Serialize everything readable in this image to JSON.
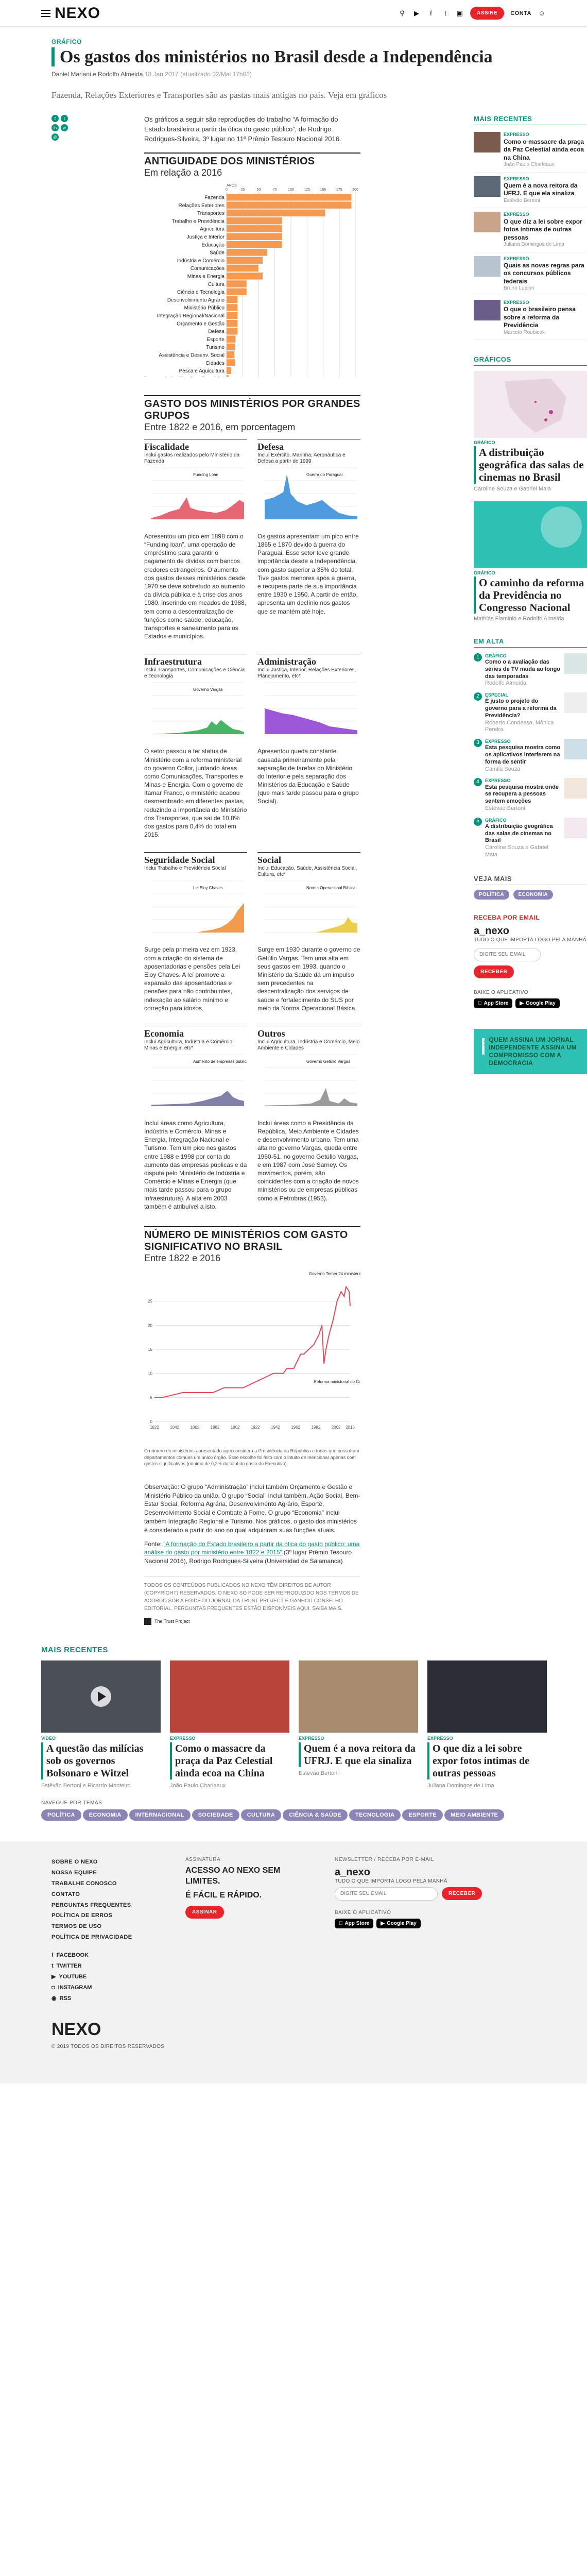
{
  "header": {
    "logo": "NEXO",
    "buttons": {
      "subscribe": "ASSINE",
      "account": "CONTA"
    }
  },
  "article": {
    "kicker": "GRÁFICO",
    "title": "Os gastos dos ministérios no Brasil desde a Independência",
    "author": "Daniel Mariani e Rodolfo Almeida",
    "date": "18 Jan 2017",
    "updated": "(atualizado 02/Mai 17h06)",
    "subtitle": "Fazenda, Relações Exteriores e Transportes são as pastas mais antigas no país. Veja em gráficos",
    "intro": "Os gráficos a seguir são reproduções do trabalho “A formação do Estado brasileiro a partir da ótica do gasto público”, de Rodrigo Rodrigues-Silveira, 3º lugar no 11º Prêmio Tesouro Nacional 2016.",
    "observacao": "Observação: O grupo “Administração” inclui também Orçamento e Gestão e Ministério Público da união. O grupo “Social” inclui também, Ação Social, Bem-Estar Social, Reforma Agrária, Desenvolvimento Agrário, Esporte, Desenvolvimento Social e Combate à Fome. O grupo “Economia” inclui também Integração Regional e Turismo. Nos gráficos, o gasto dos ministérios é considerado a partir do ano no qual adquiriram suas funções atuais.",
    "fonte_prefix": "Fonte: ",
    "fonte_link": "“A formação do Estado brasileiro a partir da ótica do gasto público: uma análise do gasto por ministério entre 1822 e 2015”",
    "fonte_suffix": " (3º lugar Prêmio Tesouro Nacional 2016), Rodrigo Rodrigues-Silveira (Universidad de Salamanca)",
    "rights": "TODOS OS CONTEÚDOS PUBLICADOS NO NEXO TÊM DIREITOS DE AUTOR (COPYRIGHT) RESERVADOS. O NEXO SÓ PODE SER REPRODUZIDO NOS TERMOS DE ACORDO SOB A ÉGIDE DO JORNAL DA TRUST PROJECT E GANHOU CONSELHO EDITORIAL. PERGUNTAS FREQUENTES ESTÃO DISPONÍVEIS AQUI. SAIBA MAIS.",
    "trust": "The Trust Project"
  },
  "chart_antiguidade": {
    "title": "ANTIGUIDADE DOS MINISTÉRIOS",
    "subtitle": "Em relação a 2016",
    "axis_top": "ANOS",
    "chart_data": {
      "type": "bar",
      "ylim": [
        0,
        200
      ],
      "ticks": [
        0,
        25,
        50,
        75,
        100,
        125,
        150,
        175,
        200
      ],
      "categories": [
        "Fazenda",
        "Relações Exteriores",
        "Transportes",
        "Trabalho e Previdência",
        "Agricultura",
        "Justiça e Interior",
        "Educação",
        "Saúde",
        "Indústria e Comércio",
        "Comunicações",
        "Minas e Energia",
        "Cultura",
        "Ciência e Tecnologia",
        "Desenvolvimento Agrário",
        "Ministério Público",
        "Integração Regional/Nacional",
        "Orçamento e Gestão",
        "Defesa",
        "Esporte",
        "Turismo",
        "Assistência e Desenv. Social",
        "Cidades",
        "Pesca e Aquicultura",
        "Transparência, Fiscalização e CGU"
      ],
      "values": [
        194,
        194,
        153,
        86,
        86,
        86,
        86,
        63,
        56,
        49,
        56,
        31,
        31,
        17,
        17,
        17,
        17,
        17,
        14,
        13,
        12,
        13,
        7,
        3
      ]
    }
  },
  "section_grupos": {
    "title": "GASTO DOS MINISTÉRIOS POR GRANDES GRUPOS",
    "subtitle": "Entre 1822 e 2016, em porcentagem"
  },
  "groups": [
    {
      "title": "Fiscalidade",
      "sub": "Inclui gastos realizados pelo Ministério da Fazenda",
      "note": "Funding Loan",
      "color": "#e24b5a",
      "text": "Apresentou um pico em 1898 com o “Funding loan”, uma operação de empréstimo para garantir o pagamento de dívidas com bancos credores estrangeiros. O aumento dos gastos desses ministérios desde 1970 se deve sobretudo ao aumento da dívida pública e à crise dos anos 1980, inserindo em meados de 1988, tem como a descentralização de funções como saúde, educação, transportes e saneamento para os Estados e municípios."
    },
    {
      "title": "Defesa",
      "sub": "Inclui Exército, Marinha, Aeronáutica e Defesa a partir de 1999",
      "note": "Guerra do Paraguai",
      "color": "#2f8ad8",
      "text": "Os gastos apresentam um pico entre 1865 e 1870 devido à guerra do Paraguai. Esse setor teve grande importância desde a Independência, com gasto superior a 35% do total. Tive gastos menores após a guerra, e recupera parte de sua importância entre 1930 e 1950. A partir de então, apresenta um declínio nos gastos que se mantém até hoje."
    },
    {
      "title": "Infraestrutura",
      "sub": "Inclui Transportes, Comunicações e Ciência e Tecnologia",
      "note": "Governo Vargas",
      "color": "#27a84a",
      "text": "O setor passou a ter status de Ministério com a reforma ministerial do governo Collor, juntando áreas como Comunicações, Transportes e Minas e Energia. Com o governo de Itamar Franco, o ministério acabou desmembrado em diferentes pastas, reduzindo a importância do Ministério dos Transportes, que sai de 10,8% dos gastos para 0,4% do total em 2015."
    },
    {
      "title": "Administração",
      "sub": "Inclui Justiça, Interior, Relações Exteriores, Planejamento, etc*",
      "note": "",
      "color": "#8a3ad0",
      "text": "Apresentou queda constante causada primeiramente pela separação de tarefas do Ministério do Interior e pela separação dos Ministérios da Educação e Saúde (que mais tarde passou para o grupo Social)."
    },
    {
      "title": "Seguridade Social",
      "sub": "Inclui Trabalho e Previdência Social",
      "note": "Lei Eloy Chaves",
      "color": "#f08a2c",
      "text": "Surge pela primeira vez em 1923, com a criação do sistema de aposentadorias e pensões pela Lei Eloy Chaves. A lei promove a expansão das aposentadorias e pensões para não contribuintes, indexação ao salário mínimo e correção para idosos."
    },
    {
      "title": "Social",
      "sub": "Inclui Educação, Saúde, Assistência Social, Cultura, etc*",
      "note": "Norma Operacional Básica",
      "color": "#e8c42a",
      "text": "Surge em 1930 durante o governo de Getúlio Vargas. Tem uma alta em seus gastos em 1993, quando o Ministério da Saúde dá um impulso sem precedentes na descentralização dos serviços de saúde e fortalecimento do SUS por meio da Norma Operacional Básica."
    },
    {
      "title": "Economia",
      "sub": "Inclui Agricultura, Indústria e Comércio, Minas e Energia, etc*",
      "note": "Aumento de empresas públicas",
      "color": "#6a6a9a",
      "text": "Inclui áreas como Agricultura, Indústria e Comércio, Minas e Energia, Integração Nacional e Turismo. Tem um pico nos gastos entre 1988 e 1998 por conta do aumento das empresas públicas e da disputa pelo Ministério de Indústria e Comércio e Minas e Energia (que mais tarde passou para o grupo Infraestrutura). A alta em 2003 também é atribuível a isto."
    },
    {
      "title": "Outros",
      "sub": "Inclui Agricultura, Indústria e Comércio, Meio Ambiente e Cidades",
      "note": "Governo Getúlio Vargas",
      "color": "#8a8a8a",
      "text": "Inclui áreas como a Presidência da República, Meio Ambiente e Cidades e desenvolvimento urbano. Tem uma alta no governo Vargas, queda entre 1950-51, no governo Getúlio Vargas, e em 1987 com José Sarney. Os movimentos, porém, são coincidentes com a criação de novos ministérios ou de empresas públicas como a Petrobras (1953)."
    }
  ],
  "chart_numero": {
    "title": "NÚMERO DE MINISTÉRIOS COM GASTO SIGNIFICATIVO NO BRASIL",
    "subtitle": "Entre 1822 e 2016",
    "note_top": "Governo Temer 24 ministérios",
    "note_mid": "Reforma ministerial de Collor (1990)",
    "footnote": "O número de ministérios apresentado aqui considera a Presidência da República e todos que possuíram departamentos comuns um único órgão. Esse escolhe foi feito com o intuito de mencionar apenas com gastos significativos (mínimo de 0,2% do total do gasto do Executivo).",
    "chart_data": {
      "type": "line",
      "xlim": [
        1822,
        2016
      ],
      "ylim": [
        0,
        30
      ],
      "yticks": [
        0,
        5,
        10,
        15,
        20,
        25
      ],
      "xticks": [
        1822,
        1842,
        1862,
        1882,
        1902,
        1922,
        1942,
        1962,
        1982,
        2002,
        2016
      ],
      "x": [
        1822,
        1830,
        1850,
        1860,
        1870,
        1880,
        1891,
        1900,
        1910,
        1920,
        1930,
        1940,
        1950,
        1953,
        1960,
        1967,
        1970,
        1975,
        1980,
        1985,
        1988,
        1990,
        1992,
        1995,
        1999,
        2003,
        2007,
        2010,
        2012,
        2015,
        2016
      ],
      "y": [
        5,
        5,
        6,
        6,
        6,
        6,
        7,
        7,
        7,
        8,
        9,
        10,
        10,
        11,
        11,
        14,
        14,
        15,
        16,
        18,
        20,
        12,
        15,
        18,
        21,
        25,
        27,
        26,
        28,
        27,
        24
      ]
    }
  },
  "sidebar": {
    "recent_head": "MAIS RECENTES",
    "recent": [
      {
        "k": "EXPRESSO",
        "t": "Como o massacre da praça da Paz Celestial ainda ecoa na China",
        "a": "João Paulo Charleaux"
      },
      {
        "k": "EXPRESSO",
        "t": "Quem é a nova reitora da UFRJ. E que ela sinaliza",
        "a": "Estêvão Bertoni"
      },
      {
        "k": "EXPRESSO",
        "t": "O que diz a lei sobre expor fotos íntimas de outras pessoas",
        "a": "Juliana Domingos de Lima"
      },
      {
        "k": "EXPRESSO",
        "t": "Quais as novas regras para os concursos públicos federais",
        "a": "Bruno Lupion"
      },
      {
        "k": "EXPRESSO",
        "t": "O que o brasileiro pensa sobre a reforma da Previdência",
        "a": "Marcelo Roubicek"
      }
    ],
    "graficos_head": "GRÁFICOS",
    "graficos": [
      {
        "k": "GRÁFICO",
        "t": "A distribuição geográfica das salas de cinemas no Brasil",
        "a": "Caroline Souza e Gabriel Maia"
      },
      {
        "k": "GRÁFICO",
        "t": "O caminho da reforma da Previdência no Congresso Nacional",
        "a": "Mathias Flaminio e Rodolfo Almeida"
      }
    ],
    "alta_head": "EM ALTA",
    "alta": [
      {
        "k": "GRÁFICO",
        "t": "Como o a avaliação das séries de TV muda ao longo das temporadas",
        "a": "Rodolfo Almeida"
      },
      {
        "k": "ESPECIAL",
        "t": "É justo o projeto do governo para a reforma da Previdência?",
        "a": "Roberto Condessa, Mônica Pereira"
      },
      {
        "k": "EXPRESSO",
        "t": "Esta pesquisa mostra como os aplicativos interferem na forma de sentir",
        "a": "Camila Souza"
      },
      {
        "k": "EXPRESSO",
        "t": "Esta pesquisa mostra onde se recupera a pessoas sentem emoções",
        "a": "Estêvão Bertoni"
      },
      {
        "k": "GRÁFICO",
        "t": "A distribuição geográfica das salas de cinemas no Brasil",
        "a": "Caroline Souza e Gabriel Maia"
      }
    ],
    "veja_head": "VEJA MAIS",
    "veja_tags": [
      "POLÍTICA",
      "ECONOMIA"
    ],
    "newsletter_head": "RECEBA POR EMAIL",
    "newsletter_logo": "a_nexo",
    "newsletter_sub": "TUDO O QUE IMPORTA LOGO PELA MANHÃ",
    "newsletter_placeholder": "DIGITE SEU EMAIL",
    "newsletter_button": "RECEBER",
    "app_head": "BAIXE O APLICATIVO",
    "app_store": "App Store",
    "google_play": "Google Play",
    "promo": "QUEM ASSINA UM JORNAL INDEPENDENTE ASSINA UM COMPROMISSO COM A DEMOCRACIA"
  },
  "more_recent": {
    "head": "MAIS RECENTES",
    "items": [
      {
        "k": "VÍDEO",
        "t": "A questão das milícias sob os governos Bolsonaro e Witzel",
        "a": "Estêvão Bertoni e Ricardo Monteiro"
      },
      {
        "k": "EXPRESSO",
        "t": "Como o massacre da praça da Paz Celestial ainda ecoa na China",
        "a": "João Paulo Charleaux"
      },
      {
        "k": "EXPRESSO",
        "t": "Quem é a nova reitora da UFRJ. E que ela sinaliza",
        "a": "Estêvão Bertoni"
      },
      {
        "k": "EXPRESSO",
        "t": "O que diz a lei sobre expor fotos íntimas de outras pessoas",
        "a": "Juliana Domingos de Lima"
      }
    ]
  },
  "topics": {
    "head": "NAVEGUE POR TEMAS",
    "items": [
      "POLÍTICA",
      "ECONOMIA",
      "INTERNACIONAL",
      "SOCIEDADE",
      "CULTURA",
      "CIÊNCIA & SAÚDE",
      "TECNOLOGIA",
      "ESPORTE",
      "MEIO AMBIENTE"
    ]
  },
  "footer": {
    "links": [
      "SOBRE O NEXO",
      "NOSSA EQUIPE",
      "TRABALHE CONOSCO",
      "CONTATO",
      "PERGUNTAS FREQUENTES",
      "POLÍTICA DE ERROS",
      "TERMOS DE USO",
      "POLÍTICA DE PRIVACIDADE"
    ],
    "social": [
      "FACEBOOK",
      "TWITTER",
      "YOUTUBE",
      "INSTAGRAM",
      "RSS"
    ],
    "sub_k": "ASSINATURA",
    "sub_t1": "ACESSO AO NEXO SEM LIMITES.",
    "sub_t2": "É FÁCIL E RÁPIDO.",
    "sub_btn": "ASSINAR",
    "nl_k": "NEWSLETTER / RECEBA POR E-MAIL",
    "nl_logo": "a_nexo",
    "nl_sub": "TUDO O QUE IMPORTA LOGO PELA MANHÃ",
    "nl_placeholder": "DIGITE SEU EMAIL",
    "nl_btn": "RECEBER",
    "app_k": "BAIXE O APLICATIVO",
    "logo": "NEXO",
    "copy": "© 2019 TODOS OS DIREITOS RESERVADOS"
  }
}
